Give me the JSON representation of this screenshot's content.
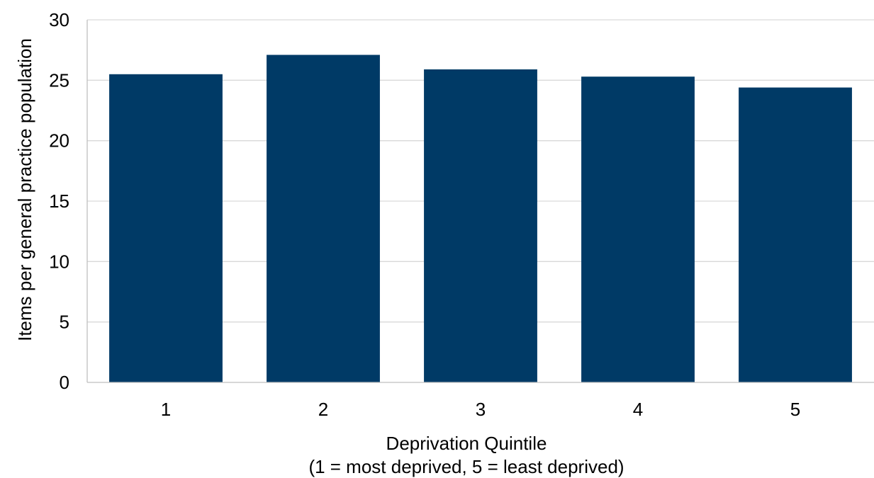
{
  "chart_data": {
    "type": "bar",
    "title": "",
    "categories": [
      "1",
      "2",
      "3",
      "4",
      "5"
    ],
    "series": [
      {
        "values": [
          25.5,
          27.1,
          25.9,
          25.3,
          24.4
        ]
      }
    ],
    "xlabel": "Deprivation Quintile",
    "xlabel_line2": "(1 = most deprived, 5 = least deprived)",
    "ylabel": "Items per general practice population",
    "ylim": [
      0,
      30
    ],
    "yticks": [
      0,
      5,
      10,
      15,
      20,
      25,
      30
    ],
    "grid": true,
    "legend": "none",
    "colors": {
      "bar": "#003a66"
    }
  }
}
